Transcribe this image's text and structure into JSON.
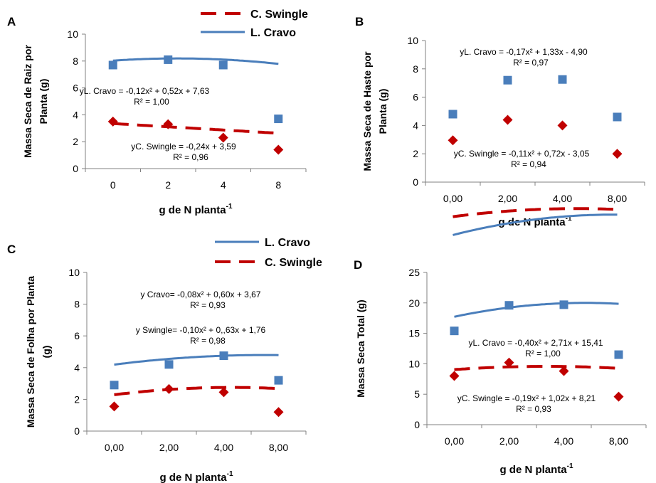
{
  "colors": {
    "l_cravo": "#4a7ebb",
    "c_swingle": "#c00000",
    "axis": "#808080"
  },
  "chart_data": [
    {
      "panel": "A",
      "type": "scatter",
      "categories": [
        "0",
        "2",
        "4",
        "8"
      ],
      "ylabel_lines": [
        "Massa Seca de Raiz por",
        "Planta (g)"
      ],
      "xlabel": "g de N planta",
      "xlabel_sup": "-1",
      "ylim": [
        0,
        10
      ],
      "yticks": [
        "0",
        "2",
        "4",
        "6",
        "8",
        "10"
      ],
      "series": [
        {
          "name": "L. Cravo",
          "marker": "square",
          "values": [
            7.7,
            8.1,
            7.7,
            3.7
          ],
          "trend": [
            7.63,
            0.52,
            -0.12
          ],
          "eq_lines": [
            "yL. Cravo = -0,12x² + 0,52x + 7,63",
            "R² = 1,00"
          ]
        },
        {
          "name": "C. Swingle",
          "marker": "diamond",
          "values": [
            3.5,
            3.3,
            2.3,
            1.4
          ],
          "trend": [
            3.59,
            -0.24
          ],
          "eq_lines": [
            "yC. Swingle = -0,24x + 3,59",
            "R² = 0,96"
          ]
        }
      ],
      "legend_order": [
        "C. Swingle",
        "L. Cravo"
      ]
    },
    {
      "panel": "B",
      "type": "scatter",
      "categories": [
        "0,00",
        "2,00",
        "4,00",
        "8,00"
      ],
      "ylabel_lines": [
        "Massa Seca de Haste por",
        "Planta (g)"
      ],
      "xlabel": "g de N planta",
      "xlabel_sup": "-1",
      "ylim": [
        0,
        10
      ],
      "yticks": [
        "0",
        "2",
        "4",
        "6",
        "8",
        "10"
      ],
      "series": [
        {
          "name": "L. Cravo",
          "marker": "square",
          "values": [
            4.8,
            7.2,
            7.25,
            4.6
          ],
          "trend": [
            -4.9,
            1.33,
            -0.17
          ],
          "eq_lines": [
            "yL. Cravo = -0,17x² + 1,33x - 4,90",
            "R² = 0,97"
          ]
        },
        {
          "name": "C. Swingle",
          "marker": "diamond",
          "values": [
            2.95,
            4.4,
            4.0,
            2.0
          ],
          "trend": [
            -3.05,
            0.72,
            -0.11
          ],
          "eq_lines": [
            "yC. Swingle = -0,11x² + 0,72x - 3,05",
            "R² = 0,94"
          ]
        }
      ]
    },
    {
      "panel": "C",
      "type": "scatter",
      "categories": [
        "0,00",
        "2,00",
        "4,00",
        "8,00"
      ],
      "ylabel_lines": [
        "Massa Seca de Folha por Planta",
        "(g)"
      ],
      "xlabel": "g de N planta",
      "xlabel_sup": "-1",
      "ylim": [
        0,
        10
      ],
      "yticks": [
        "0",
        "2",
        "4",
        "6",
        "8",
        "10"
      ],
      "series": [
        {
          "name": "L. Cravo",
          "marker": "square",
          "values": [
            2.9,
            4.2,
            4.75,
            3.2
          ],
          "trend": [
            3.67,
            0.6,
            -0.08
          ],
          "eq_lines": [
            "y Cravo= -0,08x² + 0,60x + 3,67",
            "R² = 0,93"
          ]
        },
        {
          "name": "C. Swingle",
          "marker": "diamond",
          "values": [
            1.55,
            2.65,
            2.45,
            1.2
          ],
          "trend": [
            1.76,
            0.63,
            -0.1
          ],
          "eq_lines": [
            "y Swingle= -0,10x² + 0,,63x + 1,76",
            "R² = 0,98"
          ]
        }
      ],
      "legend_order": [
        "L. Cravo",
        "C. Swingle"
      ]
    },
    {
      "panel": "D",
      "type": "scatter",
      "categories": [
        "0,00",
        "2,00",
        "4,00",
        "8,00"
      ],
      "ylabel_lines": [
        "Massa Seca Total (g)"
      ],
      "xlabel": "g de N planta",
      "xlabel_sup": "-1",
      "ylim": [
        0,
        25
      ],
      "yticks": [
        "0",
        "5",
        "10",
        "15",
        "20",
        "25"
      ],
      "series": [
        {
          "name": "L. Cravo",
          "marker": "square",
          "values": [
            15.4,
            19.6,
            19.7,
            11.5
          ],
          "trend": [
            15.41,
            2.71,
            -0.4
          ],
          "eq_lines": [
            "yL. Cravo = -0,40x² + 2,71x + 15,41",
            "R² = 1,00"
          ]
        },
        {
          "name": "C. Swingle",
          "marker": "diamond",
          "values": [
            8.0,
            10.2,
            8.8,
            4.6
          ],
          "trend": [
            8.21,
            1.02,
            -0.19
          ],
          "eq_lines": [
            "yC. Swingle = -0,19x² + 1,02x + 8,21",
            "R² = 0,93"
          ]
        }
      ]
    }
  ]
}
